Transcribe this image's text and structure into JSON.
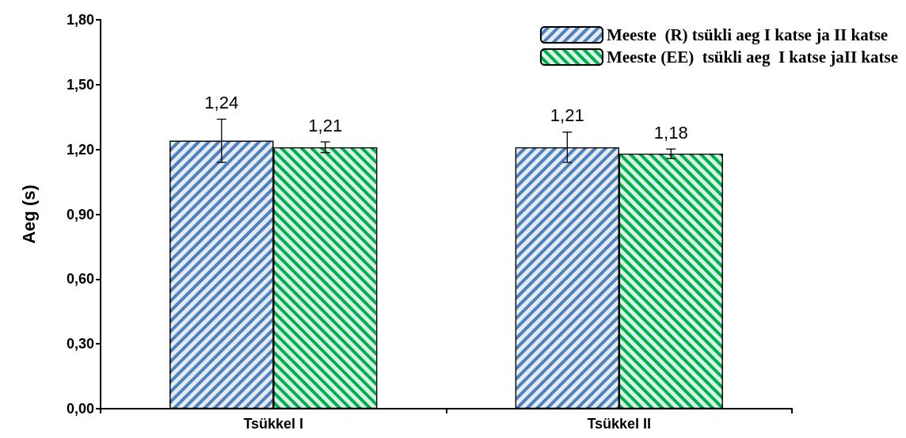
{
  "chart_data": {
    "type": "bar",
    "ylabel": "Aeg (s)",
    "categories": [
      "Tsükkel I",
      "Tsükkel II"
    ],
    "series": [
      {
        "name": "Meeste  (R) tsükli aeg I katse ja II katse",
        "color": "#4f81bd",
        "values": [
          1.24,
          1.21
        ],
        "errors": [
          0.1,
          0.07
        ],
        "value_labels": [
          "1,24",
          "1,21"
        ]
      },
      {
        "name": "Meeste (EE)  tsükli aeg  I katse jaII katse",
        "color": "#00b050",
        "values": [
          1.21,
          1.18
        ],
        "errors": [
          0.025,
          0.022
        ],
        "value_labels": [
          "1,21",
          "1,18"
        ]
      }
    ],
    "ylim": [
      0,
      1.8
    ],
    "yticks": [
      {
        "value": 0,
        "label": "0,00"
      },
      {
        "value": 0.3,
        "label": "0,30"
      },
      {
        "value": 0.6,
        "label": "0,60"
      },
      {
        "value": 0.9,
        "label": "0,90"
      },
      {
        "value": 1.2,
        "label": "1,20"
      },
      {
        "value": 1.5,
        "label": "1,50"
      },
      {
        "value": 1.8,
        "label": "1,80"
      }
    ],
    "grid": false,
    "legend": "top right"
  }
}
